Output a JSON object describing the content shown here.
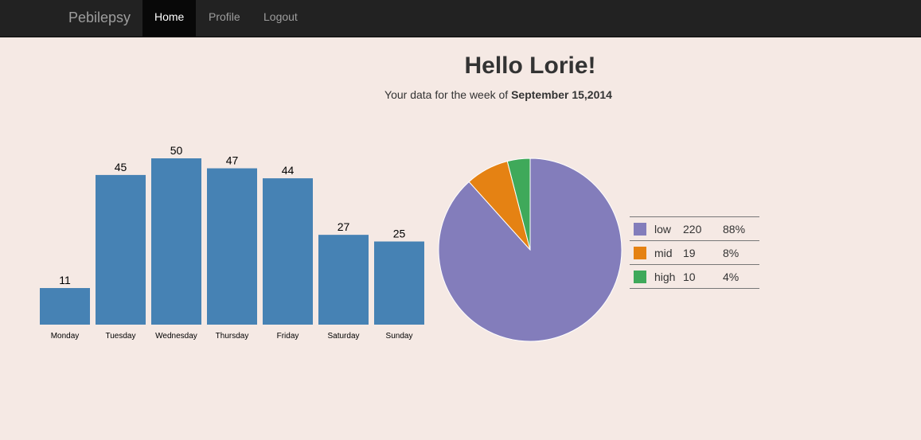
{
  "nav": {
    "brand": "Pebilepsy",
    "items": [
      {
        "label": "Home",
        "active": true
      },
      {
        "label": "Profile"
      },
      {
        "label": "Logout"
      }
    ]
  },
  "header": {
    "title": "Hello Lorie!",
    "subtitle_prefix": "Your data for the week of ",
    "subtitle_date": "September 15,2014"
  },
  "chart_data": [
    {
      "type": "bar",
      "categories": [
        "Monday",
        "Tuesday",
        "Wednesday",
        "Thursday",
        "Friday",
        "Saturday",
        "Sunday"
      ],
      "values": [
        11,
        45,
        50,
        47,
        44,
        27,
        25
      ],
      "color": "#4682b4",
      "ylim": [
        0,
        50
      ]
    },
    {
      "type": "pie",
      "labels": [
        "low",
        "mid",
        "high"
      ],
      "values": [
        220,
        19,
        10
      ],
      "percents": [
        "88%",
        "8%",
        "4%"
      ],
      "colors": [
        "#837dbb",
        "#e58213",
        "#3fa95a"
      ]
    }
  ]
}
